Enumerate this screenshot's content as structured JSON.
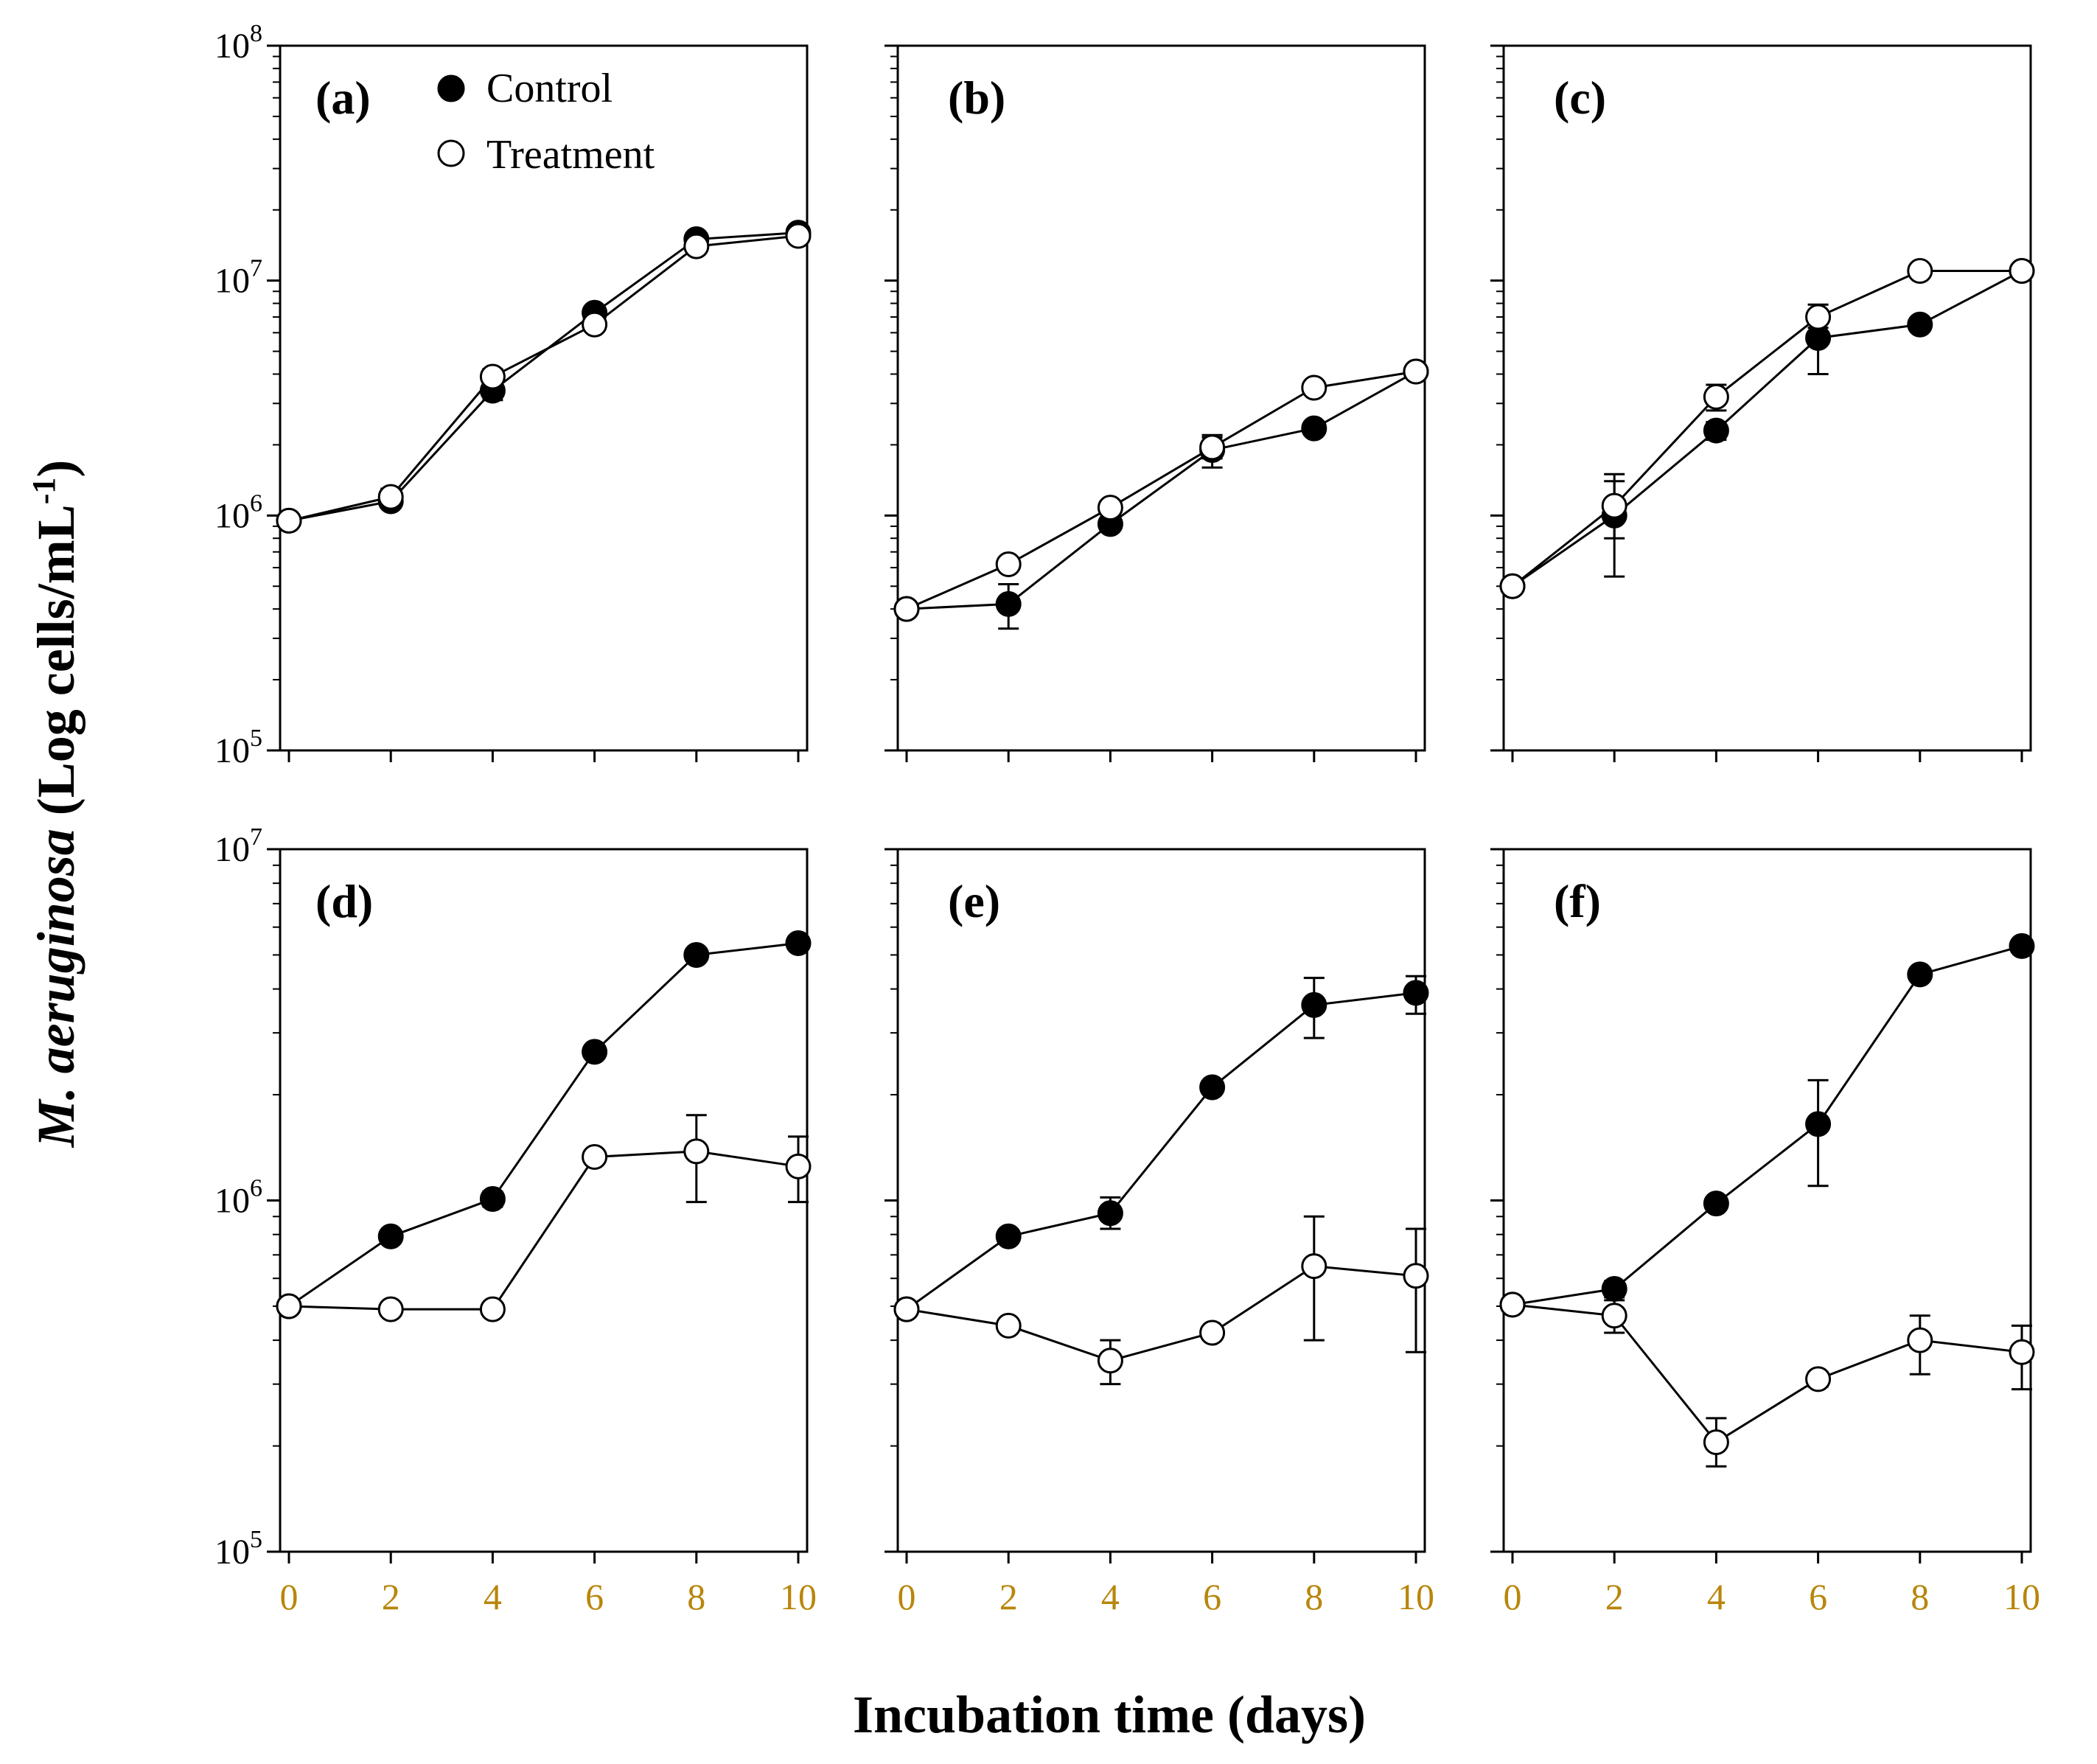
{
  "chart_data": {
    "type": "line",
    "ylabel_italic": "M. aeruginosa",
    "ylabel_rest": " (Log cells/mL",
    "ylabel_sup": "-1",
    "ylabel_close": ")",
    "xlabel": "Incubation time (days)",
    "x": [
      0,
      2,
      4,
      6,
      8,
      10
    ],
    "x_tick_labels": [
      "0",
      "2",
      "4",
      "6",
      "8",
      "10"
    ],
    "legend": {
      "control": "Control",
      "treatment": "Treatment"
    },
    "rows": [
      {
        "ylim_exp": [
          5,
          8
        ],
        "y_tick_labels": [
          {
            "base": "10",
            "exp": "5"
          },
          {
            "base": "10",
            "exp": "6"
          },
          {
            "base": "10",
            "exp": "7"
          },
          {
            "base": "10",
            "exp": "8"
          }
        ]
      },
      {
        "ylim_exp": [
          5,
          7
        ],
        "y_tick_labels": [
          {
            "base": "10",
            "exp": "5"
          },
          {
            "base": "10",
            "exp": "6"
          },
          {
            "base": "10",
            "exp": "7"
          }
        ]
      }
    ],
    "panels": [
      {
        "label": "(a)",
        "series": [
          {
            "name": "Control",
            "values": [
              950000,
              1150000,
              3400000,
              7300000,
              15000000,
              16000000
            ],
            "err_lo": [
              900000,
              1080000,
              3100000,
              6900000,
              14400000,
              15300000
            ],
            "err_hi": [
              1000000,
              1230000,
              3700000,
              7800000,
              15700000,
              16800000
            ]
          },
          {
            "name": "Treatment",
            "values": [
              950000,
              1200000,
              3900000,
              6500000,
              14000000,
              15500000
            ],
            "err_lo": [
              900000,
              1100000,
              3600000,
              6100000,
              13400000,
              14800000
            ],
            "err_hi": [
              1000000,
              1300000,
              4200000,
              6900000,
              14600000,
              16200000
            ]
          }
        ]
      },
      {
        "label": "(b)",
        "series": [
          {
            "name": "Control",
            "values": [
              400000,
              420000,
              920000,
              1900000,
              2350000,
              4100000
            ],
            "err_lo": [
              380000,
              330000,
              870000,
              1600000,
              2250000,
              3950000
            ],
            "err_hi": [
              420000,
              510000,
              970000,
              2200000,
              2450000,
              4250000
            ]
          },
          {
            "name": "Treatment",
            "values": [
              400000,
              620000,
              1080000,
              1950000,
              3500000,
              4100000
            ],
            "err_lo": [
              380000,
              590000,
              1030000,
              1750000,
              3350000,
              3950000
            ],
            "err_hi": [
              420000,
              650000,
              1130000,
              2150000,
              3650000,
              4250000
            ]
          }
        ]
      },
      {
        "label": "(c)",
        "series": [
          {
            "name": "Control",
            "values": [
              500000,
              1000000,
              2300000,
              5700000,
              6500000,
              11000000
            ],
            "err_lo": [
              480000,
              550000,
              2100000,
              4000000,
              6200000,
              10500000
            ],
            "err_hi": [
              520000,
              1500000,
              2500000,
              7400000,
              6800000,
              11500000
            ]
          },
          {
            "name": "Treatment",
            "values": [
              500000,
              1100000,
              3200000,
              7000000,
              11000000,
              11000000
            ],
            "err_lo": [
              480000,
              800000,
              2800000,
              6300000,
              10500000,
              10500000
            ],
            "err_hi": [
              520000,
              1400000,
              3600000,
              7900000,
              11500000,
              11500000
            ]
          }
        ]
      },
      {
        "label": "(d)",
        "series": [
          {
            "name": "Control",
            "values": [
              500000,
              790000,
              1010000,
              2650000,
              5000000,
              5400000
            ],
            "err_lo": [
              485000,
              765000,
              960000,
              2580000,
              4880000,
              5250000
            ],
            "err_hi": [
              515000,
              815000,
              1060000,
              2720000,
              5120000,
              5550000
            ]
          },
          {
            "name": "Treatment",
            "values": [
              500000,
              490000,
              490000,
              1330000,
              1380000,
              1250000
            ],
            "err_lo": [
              485000,
              470000,
              470000,
              1290000,
              990000,
              990000
            ],
            "err_hi": [
              515000,
              510000,
              510000,
              1370000,
              1750000,
              1520000
            ]
          }
        ]
      },
      {
        "label": "(e)",
        "series": [
          {
            "name": "Control",
            "values": [
              490000,
              790000,
              920000,
              2100000,
              3600000,
              3900000
            ],
            "err_lo": [
              470000,
              765000,
              830000,
              2040000,
              2900000,
              3400000
            ],
            "err_hi": [
              510000,
              815000,
              1020000,
              2160000,
              4300000,
              4350000
            ]
          },
          {
            "name": "Treatment",
            "values": [
              490000,
              440000,
              350000,
              420000,
              650000,
              610000
            ],
            "err_lo": [
              470000,
              425000,
              300000,
              405000,
              400000,
              370000
            ],
            "err_hi": [
              510000,
              455000,
              400000,
              435000,
              900000,
              830000
            ]
          }
        ]
      },
      {
        "label": "(f)",
        "series": [
          {
            "name": "Control",
            "values": [
              505000,
              560000,
              980000,
              1650000,
              4400000,
              5300000
            ],
            "err_lo": [
              485000,
              530000,
              950000,
              1100000,
              4250000,
              5100000
            ],
            "err_hi": [
              525000,
              590000,
              1010000,
              2200000,
              4550000,
              5500000
            ]
          },
          {
            "name": "Treatment",
            "values": [
              505000,
              470000,
              205000,
              310000,
              400000,
              370000
            ],
            "err_lo": [
              485000,
              420000,
              175000,
              295000,
              320000,
              290000
            ],
            "err_hi": [
              525000,
              520000,
              240000,
              325000,
              470000,
              440000
            ]
          }
        ]
      }
    ]
  }
}
